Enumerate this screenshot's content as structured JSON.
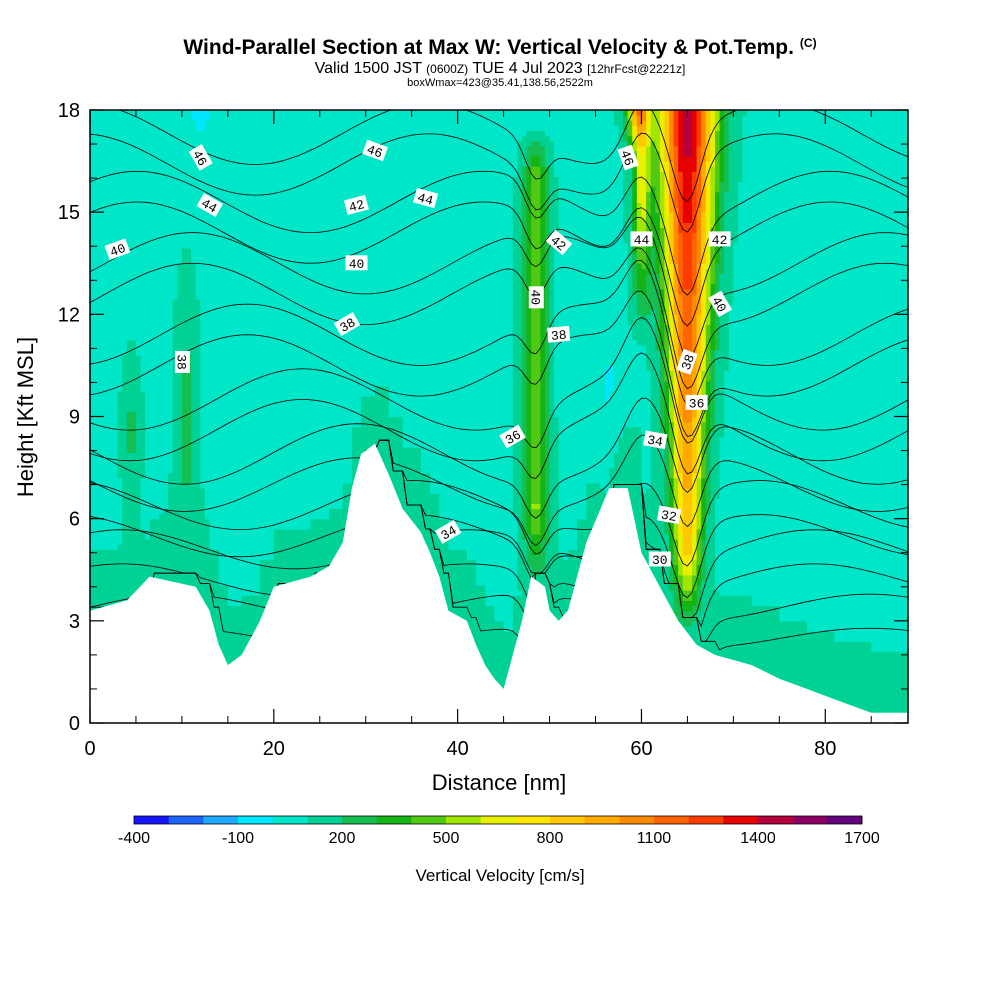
{
  "header": {
    "title": "Wind-Parallel Section at Max W: Vertical Velocity & Pot.Temp.",
    "title_mark": "(C)",
    "valid_time": "Valid 1500 JST",
    "utc_time": "(0600Z)",
    "date": "TUE 4 Jul 2023",
    "forecast": "[12hrFcst@2221z]",
    "box_info": "boxWmax=423@35.41,138.56,2522m"
  },
  "chart_data": {
    "type": "heatmap",
    "xlabel": "Distance [nm]",
    "ylabel": "Height [Kft MSL]",
    "xlim": [
      0,
      89
    ],
    "ylim": [
      0,
      18
    ],
    "x_ticks": [
      "0",
      "20",
      "40",
      "60",
      "80"
    ],
    "y_ticks": [
      "0",
      "3",
      "6",
      "9",
      "12",
      "15",
      "18"
    ],
    "colorbar": {
      "title": "Vertical Velocity [cm/s]",
      "levels": [
        -400,
        -300,
        -200,
        -100,
        0,
        100,
        200,
        300,
        400,
        500,
        600,
        700,
        800,
        900,
        1000,
        1100,
        1200,
        1300,
        1400,
        1500,
        1600,
        1700
      ],
      "tick_labels": [
        "-400",
        "-100",
        "200",
        "500",
        "800",
        "1100",
        "1400",
        "1700"
      ],
      "colors": [
        "#1414ff",
        "#1e64ff",
        "#1eaaff",
        "#00e6ff",
        "#00e6c8",
        "#00d296",
        "#14be50",
        "#14b414",
        "#50c814",
        "#a0e600",
        "#e6f000",
        "#ffe600",
        "#ffc800",
        "#ffaa00",
        "#ff8c00",
        "#ff6400",
        "#ff3c00",
        "#e60000",
        "#b4003c",
        "#8c0064",
        "#64007d"
      ]
    },
    "contour_labels": [
      "46",
      "44",
      "40",
      "46",
      "42",
      "40",
      "44",
      "38",
      "38",
      "42",
      "40",
      "38",
      "36",
      "34",
      "46",
      "44",
      "42",
      "40",
      "38",
      "36",
      "34",
      "32",
      "30"
    ],
    "terrain_kft": [
      [
        0,
        3.3
      ],
      [
        4,
        3.6
      ],
      [
        6.5,
        4.3
      ],
      [
        11.5,
        4.0
      ],
      [
        13,
        3.3
      ],
      [
        14,
        2.3
      ],
      [
        15,
        1.7
      ],
      [
        16.5,
        2.0
      ],
      [
        18.5,
        3.0
      ],
      [
        20,
        4.0
      ],
      [
        24,
        4.3
      ],
      [
        26,
        4.6
      ],
      [
        27.5,
        5.3
      ],
      [
        28.5,
        6.9
      ],
      [
        29.5,
        7.9
      ],
      [
        31,
        8.2
      ],
      [
        32.5,
        7.3
      ],
      [
        34,
        6.3
      ],
      [
        36,
        5.6
      ],
      [
        37,
        5.0
      ],
      [
        38,
        4.3
      ],
      [
        39,
        3.3
      ],
      [
        41,
        3.0
      ],
      [
        42,
        2.3
      ],
      [
        43,
        1.7
      ],
      [
        44,
        1.3
      ],
      [
        45,
        1.0
      ],
      [
        46,
        2.0
      ],
      [
        47,
        3.0
      ],
      [
        48,
        4.3
      ],
      [
        49.5,
        4.0
      ],
      [
        50,
        3.3
      ],
      [
        51,
        3.0
      ],
      [
        52,
        3.3
      ],
      [
        53,
        4.3
      ],
      [
        54,
        5.3
      ],
      [
        56.5,
        6.9
      ],
      [
        58.5,
        6.9
      ],
      [
        60,
        5.0
      ],
      [
        62,
        4.0
      ],
      [
        64,
        3.0
      ],
      [
        66,
        2.3
      ],
      [
        68,
        2.0
      ],
      [
        72,
        1.7
      ],
      [
        75,
        1.3
      ],
      [
        78,
        1.0
      ],
      [
        81,
        0.7
      ],
      [
        85,
        0.3
      ],
      [
        89,
        0.3
      ]
    ],
    "background_w": 80,
    "updraft_cores": [
      {
        "x": 48.5,
        "z_bottom": 4.3,
        "z_top": 16.0,
        "w_max": 420
      },
      {
        "x": 59.5,
        "z_bottom": 17.0,
        "z_top": 18.0,
        "w_max": 900
      },
      {
        "x": 65.0,
        "z_bottom": 3.0,
        "z_top": 18.0,
        "w_max": 1400
      }
    ],
    "isentropes_k": [
      30,
      32,
      34,
      36,
      38,
      40,
      42,
      44,
      46
    ]
  }
}
